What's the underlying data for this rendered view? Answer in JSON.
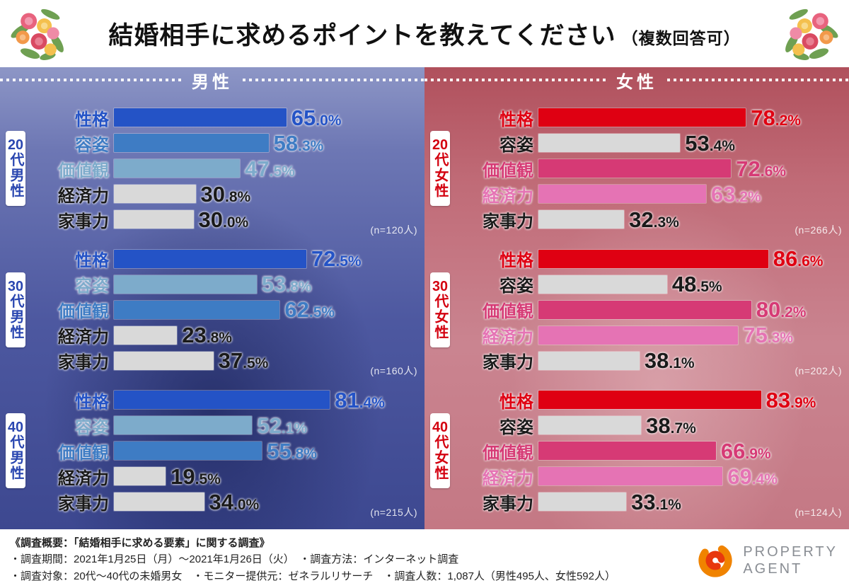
{
  "header": {
    "title": "結婚相手に求めるポイントを教えてください",
    "note": "（複数回答可）"
  },
  "chart_data": {
    "type": "bar",
    "orientation": "horizontal",
    "title": "結婚相手に求めるポイントを教えてください（複数回答可）",
    "unit": "%",
    "xlim": [
      0,
      100
    ],
    "categories": [
      "性格",
      "容姿",
      "価値観",
      "経済力",
      "家事力"
    ],
    "panels": [
      {
        "gender": "男性",
        "theme_color": "#2453c6",
        "groups": [
          {
            "label": "20代男性",
            "n": 120,
            "n_label": "(n=120人)",
            "rows": [
              {
                "category": "性格",
                "value": 65.0,
                "bar_color": "#2453c6",
                "text_color": "#2453c6"
              },
              {
                "category": "容姿",
                "value": 58.3,
                "bar_color": "#3e7cc4",
                "text_color": "#3e7cc4"
              },
              {
                "category": "価値観",
                "value": 47.5,
                "bar_color": "#7dabcb",
                "text_color": "#7dabcb"
              },
              {
                "category": "経済力",
                "value": 30.8,
                "bar_color": "#d9d9d9",
                "text_color": "#1a1a1a"
              },
              {
                "category": "家事力",
                "value": 30.0,
                "bar_color": "#d9d9d9",
                "text_color": "#1a1a1a"
              }
            ]
          },
          {
            "label": "30代男性",
            "n": 160,
            "n_label": "(n=160人)",
            "rows": [
              {
                "category": "性格",
                "value": 72.5,
                "bar_color": "#2453c6",
                "text_color": "#2453c6"
              },
              {
                "category": "容姿",
                "value": 53.8,
                "bar_color": "#7dabcb",
                "text_color": "#7dabcb"
              },
              {
                "category": "価値観",
                "value": 62.5,
                "bar_color": "#3e7cc4",
                "text_color": "#3e7cc4"
              },
              {
                "category": "経済力",
                "value": 23.8,
                "bar_color": "#d9d9d9",
                "text_color": "#1a1a1a"
              },
              {
                "category": "家事力",
                "value": 37.5,
                "bar_color": "#d9d9d9",
                "text_color": "#1a1a1a"
              }
            ]
          },
          {
            "label": "40代男性",
            "n": 215,
            "n_label": "(n=215人)",
            "rows": [
              {
                "category": "性格",
                "value": 81.4,
                "bar_color": "#2453c6",
                "text_color": "#2453c6"
              },
              {
                "category": "容姿",
                "value": 52.1,
                "bar_color": "#7dabcb",
                "text_color": "#7dabcb"
              },
              {
                "category": "価値観",
                "value": 55.8,
                "bar_color": "#3e7cc4",
                "text_color": "#3e7cc4"
              },
              {
                "category": "経済力",
                "value": 19.5,
                "bar_color": "#d9d9d9",
                "text_color": "#1a1a1a"
              },
              {
                "category": "家事力",
                "value": 34.0,
                "bar_color": "#d9d9d9",
                "text_color": "#1a1a1a"
              }
            ]
          }
        ]
      },
      {
        "gender": "女性",
        "theme_color": "#df0012",
        "groups": [
          {
            "label": "20代女性",
            "n": 266,
            "n_label": "(n=266人)",
            "rows": [
              {
                "category": "性格",
                "value": 78.2,
                "bar_color": "#df0012",
                "text_color": "#df0012"
              },
              {
                "category": "容姿",
                "value": 53.4,
                "bar_color": "#d9d9d9",
                "text_color": "#1a1a1a"
              },
              {
                "category": "価値観",
                "value": 72.6,
                "bar_color": "#d63a75",
                "text_color": "#d63a75"
              },
              {
                "category": "経済力",
                "value": 63.2,
                "bar_color": "#e573b4",
                "text_color": "#e573b4"
              },
              {
                "category": "家事力",
                "value": 32.3,
                "bar_color": "#d9d9d9",
                "text_color": "#1a1a1a"
              }
            ]
          },
          {
            "label": "30代女性",
            "n": 202,
            "n_label": "(n=202人)",
            "rows": [
              {
                "category": "性格",
                "value": 86.6,
                "bar_color": "#df0012",
                "text_color": "#df0012"
              },
              {
                "category": "容姿",
                "value": 48.5,
                "bar_color": "#d9d9d9",
                "text_color": "#1a1a1a"
              },
              {
                "category": "価値観",
                "value": 80.2,
                "bar_color": "#d63a75",
                "text_color": "#d63a75"
              },
              {
                "category": "経済力",
                "value": 75.3,
                "bar_color": "#e573b4",
                "text_color": "#e573b4"
              },
              {
                "category": "家事力",
                "value": 38.1,
                "bar_color": "#d9d9d9",
                "text_color": "#1a1a1a"
              }
            ]
          },
          {
            "label": "40代女性",
            "n": 124,
            "n_label": "(n=124人)",
            "rows": [
              {
                "category": "性格",
                "value": 83.9,
                "bar_color": "#df0012",
                "text_color": "#df0012"
              },
              {
                "category": "容姿",
                "value": 38.7,
                "bar_color": "#d9d9d9",
                "text_color": "#1a1a1a"
              },
              {
                "category": "価値観",
                "value": 66.9,
                "bar_color": "#d63a75",
                "text_color": "#d63a75"
              },
              {
                "category": "経済力",
                "value": 69.4,
                "bar_color": "#e573b4",
                "text_color": "#e573b4"
              },
              {
                "category": "家事力",
                "value": 33.1,
                "bar_color": "#d9d9d9",
                "text_color": "#1a1a1a"
              }
            ]
          }
        ]
      }
    ]
  },
  "footer": {
    "line1": "《調査概要：「結婚相手に求める要素」に関する調査》",
    "line2": "・調査期間：2021年1月25日（月）～2021年1月26日（火）　・調査方法：インターネット調査",
    "line3": "・調査対象：20代～40代の未婚男女　・モニター提供元：ゼネラルリサーチ　・調査人数：1,087人（男性495人、女性592人）",
    "logo_line1": "PROPERTY",
    "logo_line2": "AGENT"
  }
}
